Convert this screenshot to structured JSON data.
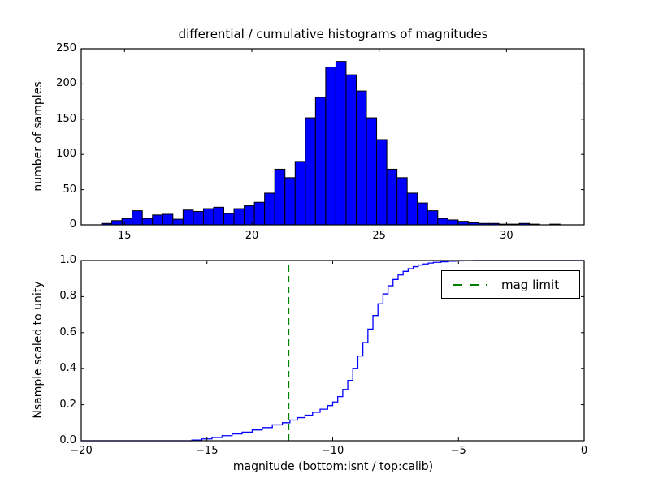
{
  "title": "differential / cumulative histograms of magnitudes",
  "xlabel": "magnitude (bottom:isnt / top:calib)",
  "colors": {
    "background": "#ffffff",
    "bar_fill": "#0000ff",
    "bar_edge": "#000000",
    "curve": "#0000ff",
    "mag_limit_line": "#008000",
    "axis": "#000000",
    "text": "#000000"
  },
  "top_plot": {
    "ylabel": "number of samples",
    "xtick_labels": [
      "15",
      "20",
      "25",
      "30"
    ],
    "ytick_labels": [
      "0",
      "50",
      "100",
      "150",
      "200",
      "250"
    ]
  },
  "bottom_plot": {
    "ylabel": "Nsample scaled to unity",
    "xtick_labels": [
      "−20",
      "−15",
      "−10",
      "−5",
      "0"
    ],
    "ytick_labels": [
      "0.0",
      "0.2",
      "0.4",
      "0.6",
      "0.8",
      "1.0"
    ],
    "legend": {
      "label": "mag limit"
    }
  },
  "chart_data": [
    {
      "type": "bar",
      "title": "differential histogram of calibrated magnitudes (top panel)",
      "ylabel": "number of samples",
      "xlabel": "magnitude (top:calib)",
      "bin_start": 14.1,
      "bin_width": 0.4,
      "counts": [
        2,
        6,
        9,
        20,
        9,
        14,
        15,
        8,
        21,
        19,
        23,
        25,
        16,
        23,
        27,
        32,
        45,
        79,
        67,
        90,
        152,
        181,
        224,
        232,
        213,
        190,
        152,
        121,
        79,
        67,
        45,
        31,
        20,
        9,
        7,
        5,
        3,
        2,
        2,
        1,
        1,
        2,
        1,
        0,
        1
      ],
      "xticks": [
        15,
        20,
        25,
        30
      ],
      "yticks": [
        0,
        50,
        100,
        150,
        200,
        250
      ],
      "xlim": [
        13.3,
        33.05
      ],
      "ylim": [
        0,
        250
      ],
      "grid": false
    },
    {
      "type": "line",
      "step": true,
      "title": "cumulative histogram scaled to unity (bottom panel)",
      "ylabel": "Nsample scaled to unity",
      "xlabel": "magnitude (bottom:isnt)",
      "x": [
        -20,
        -15.6,
        -15.2,
        -14.8,
        -14.4,
        -14.0,
        -13.6,
        -13.2,
        -12.8,
        -12.4,
        -12.0,
        -11.7,
        -11.4,
        -11.1,
        -10.8,
        -10.5,
        -10.2,
        -10.0,
        -9.8,
        -9.6,
        -9.4,
        -9.2,
        -9.0,
        -8.8,
        -8.6,
        -8.4,
        -8.2,
        -8.0,
        -7.8,
        -7.6,
        -7.4,
        -7.2,
        -7.0,
        -6.8,
        -6.6,
        -6.4,
        -6.2,
        -6.0,
        -5.7,
        -5.4,
        -5.1,
        -4.8,
        -4.4,
        0
      ],
      "y": [
        0,
        0.004,
        0.01,
        0.018,
        0.028,
        0.038,
        0.048,
        0.06,
        0.073,
        0.088,
        0.1,
        0.115,
        0.128,
        0.142,
        0.158,
        0.175,
        0.195,
        0.215,
        0.245,
        0.285,
        0.335,
        0.4,
        0.47,
        0.545,
        0.62,
        0.695,
        0.76,
        0.815,
        0.86,
        0.895,
        0.92,
        0.94,
        0.955,
        0.966,
        0.975,
        0.981,
        0.986,
        0.99,
        0.993,
        0.996,
        0.998,
        0.999,
        1.0,
        1.0
      ],
      "xticks": [
        -20,
        -15,
        -10,
        -5,
        0
      ],
      "yticks": [
        0.0,
        0.2,
        0.4,
        0.6,
        0.8,
        1.0
      ],
      "xlim": [
        -20,
        0
      ],
      "ylim": [
        0,
        1
      ],
      "grid": false,
      "vline": {
        "x": -11.75,
        "label": "mag limit",
        "color": "#008000",
        "style": "dashed"
      },
      "legend_position": "upper right"
    }
  ]
}
